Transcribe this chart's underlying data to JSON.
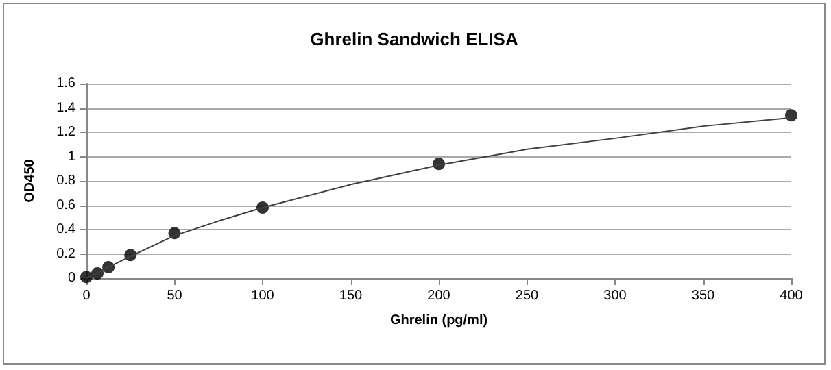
{
  "chart_data": {
    "type": "scatter",
    "title": "Ghrelin Sandwich ELISA",
    "xlabel": "Ghrelin (pg/ml)",
    "ylabel": "OD450",
    "xlim": [
      0,
      400
    ],
    "xticks": [
      0,
      50,
      100,
      150,
      200,
      250,
      300,
      350,
      400
    ],
    "ylim": [
      0,
      1.6
    ],
    "yticks": [
      0,
      0.2,
      0.4,
      0.6,
      0.8,
      1,
      1.2,
      1.4,
      1.6
    ],
    "grid": "y",
    "series": [
      {
        "type": "line",
        "color": "#404040",
        "marker": "none",
        "line_style": "solid",
        "x": [
          0,
          25,
          50,
          75,
          100,
          150,
          200,
          250,
          300,
          350,
          400
        ],
        "values": [
          0,
          0.18,
          0.35,
          0.47,
          0.58,
          0.77,
          0.93,
          1.06,
          1.15,
          1.25,
          1.32
        ]
      },
      {
        "color": "#000000",
        "marker": "circle",
        "x": [
          0,
          6.25,
          12.5,
          25,
          50,
          100,
          200,
          400
        ],
        "values": [
          0.01,
          0.04,
          0.09,
          0.19,
          0.37,
          0.58,
          0.94,
          1.34
        ]
      }
    ]
  }
}
